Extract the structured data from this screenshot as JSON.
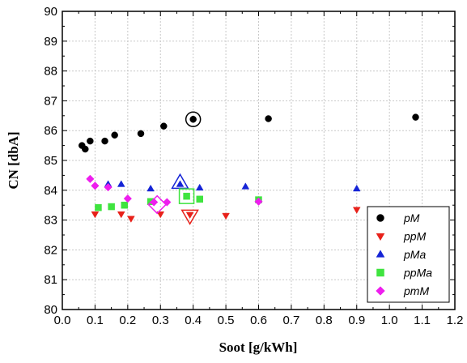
{
  "chart_data": {
    "type": "scatter",
    "xlabel": "Soot [g/kWh]",
    "ylabel": "CN [dbA]",
    "xlim": [
      0.0,
      1.2
    ],
    "ylim": [
      80,
      90
    ],
    "xticks": [
      "0.0",
      "0.1",
      "0.2",
      "0.3",
      "0.4",
      "0.5",
      "0.6",
      "0.7",
      "0.8",
      "0.9",
      "1.0",
      "1.1",
      "1.2"
    ],
    "yticks": [
      "80",
      "81",
      "82",
      "83",
      "84",
      "85",
      "86",
      "87",
      "88",
      "89",
      "90"
    ],
    "grid": true,
    "legend_position": "bottom-right",
    "series": [
      {
        "name": "pM",
        "marker": "circle",
        "color": "#000000",
        "points": [
          [
            0.06,
            85.5
          ],
          [
            0.07,
            85.38
          ],
          [
            0.085,
            85.65
          ],
          [
            0.13,
            85.65
          ],
          [
            0.16,
            85.85
          ],
          [
            0.24,
            85.9
          ],
          [
            0.31,
            86.15
          ],
          [
            0.4,
            86.38
          ],
          [
            0.63,
            86.4
          ],
          [
            1.08,
            86.45
          ]
        ],
        "highlight": [
          0.4,
          86.38
        ]
      },
      {
        "name": "ppM",
        "marker": "triangle-down",
        "color": "#e8211a",
        "points": [
          [
            0.1,
            83.2
          ],
          [
            0.18,
            83.2
          ],
          [
            0.21,
            83.05
          ],
          [
            0.3,
            83.2
          ],
          [
            0.39,
            83.18
          ],
          [
            0.5,
            83.15
          ],
          [
            0.9,
            83.35
          ]
        ],
        "highlight": [
          0.39,
          83.15
        ]
      },
      {
        "name": "pMa",
        "marker": "triangle-up",
        "color": "#1524d6",
        "points": [
          [
            0.14,
            84.2
          ],
          [
            0.18,
            84.2
          ],
          [
            0.27,
            84.05
          ],
          [
            0.36,
            84.2
          ],
          [
            0.42,
            84.08
          ],
          [
            0.56,
            84.12
          ],
          [
            0.9,
            84.05
          ]
        ],
        "highlight": [
          0.36,
          84.25
        ]
      },
      {
        "name": "ppMa",
        "marker": "square",
        "color": "#3fe43f",
        "points": [
          [
            0.11,
            83.42
          ],
          [
            0.15,
            83.45
          ],
          [
            0.19,
            83.5
          ],
          [
            0.27,
            83.62
          ],
          [
            0.38,
            83.8
          ],
          [
            0.42,
            83.7
          ],
          [
            0.6,
            83.68
          ]
        ],
        "highlight": [
          0.38,
          83.8
        ]
      },
      {
        "name": "pmM",
        "marker": "diamond",
        "color": "#ee1eee",
        "points": [
          [
            0.085,
            84.38
          ],
          [
            0.1,
            84.15
          ],
          [
            0.14,
            84.1
          ],
          [
            0.2,
            83.72
          ],
          [
            0.28,
            83.6
          ],
          [
            0.32,
            83.6
          ],
          [
            0.6,
            83.62
          ]
        ],
        "highlight": [
          0.29,
          83.52
        ]
      }
    ]
  }
}
